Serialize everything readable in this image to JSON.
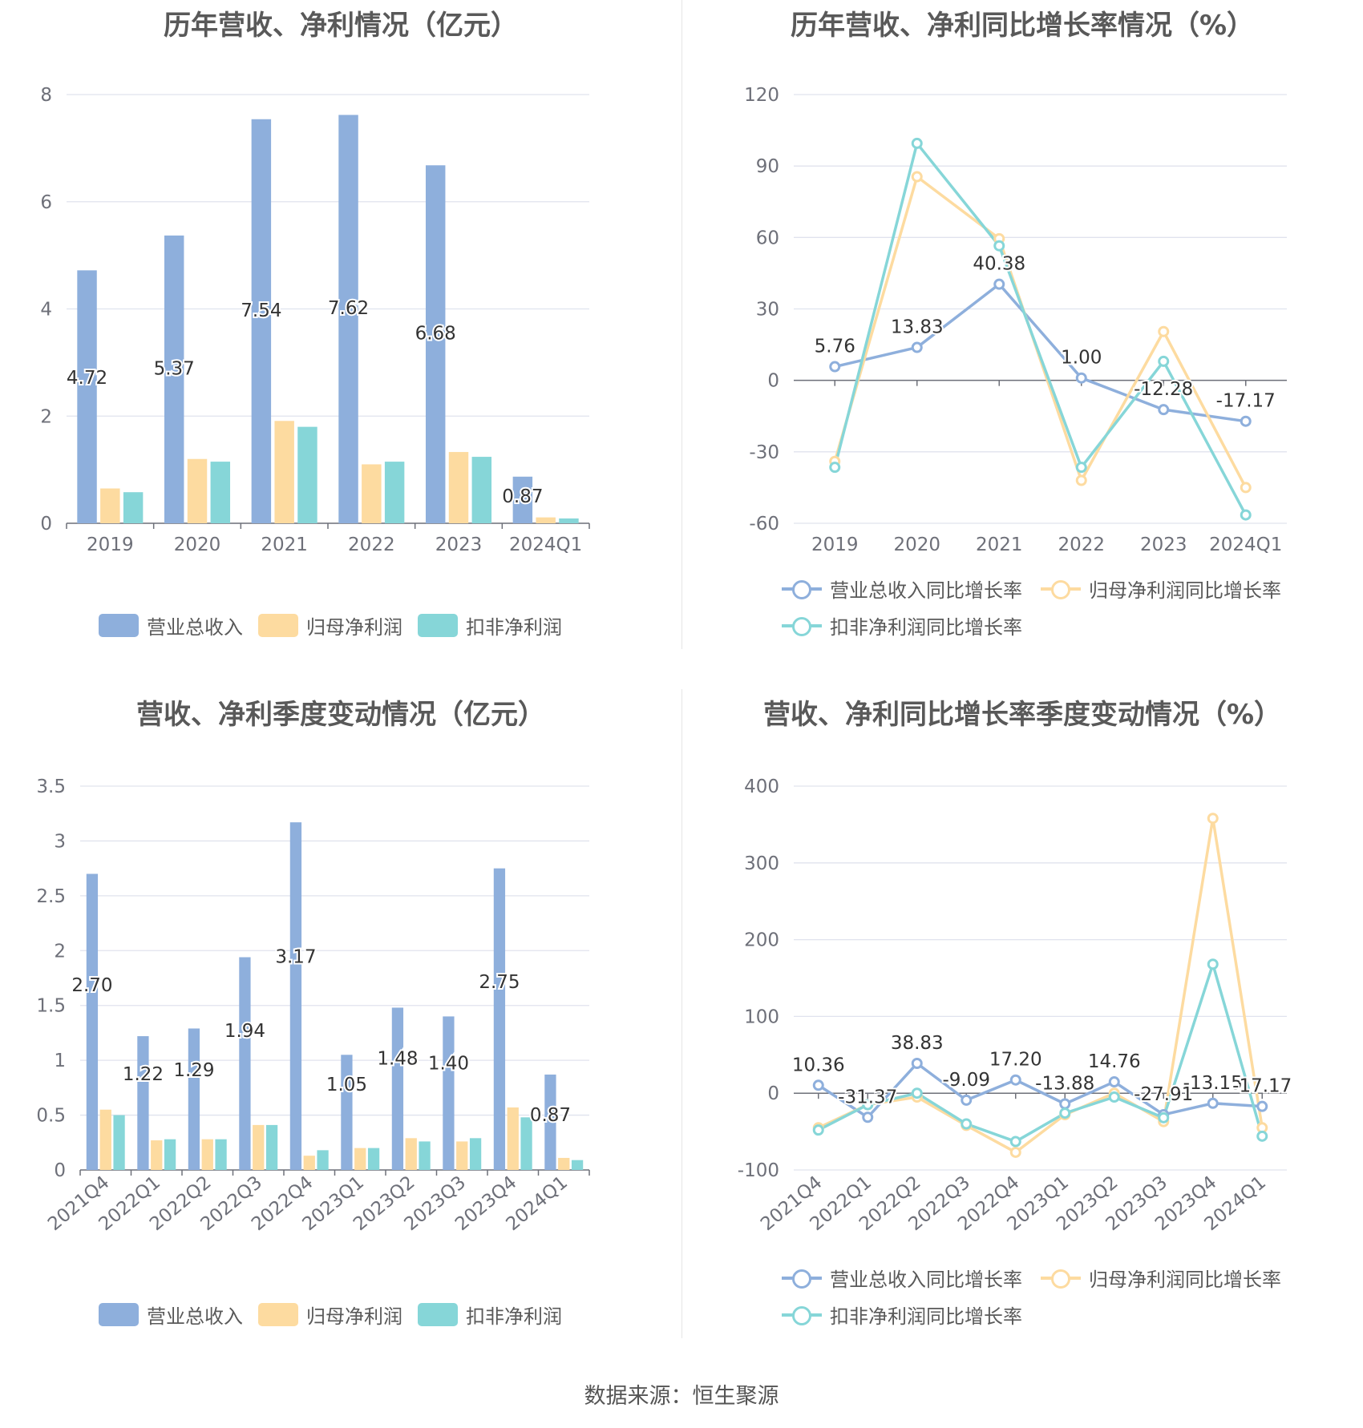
{
  "source": "数据来源：恒生聚源",
  "legend": {
    "bar": [
      "营业总收入",
      "归母净利润",
      "扣非净利润"
    ],
    "line": [
      "营业总收入同比增长率",
      "归母净利润同比增长率",
      "扣非净利润同比增长率"
    ]
  },
  "colors": {
    "revenue": "#8eafdc",
    "net_profit": "#fddba0",
    "deducted": "#86d6d8",
    "grid": "#e0e3ee",
    "axis": "#6e7079"
  },
  "chart_data": [
    {
      "type": "bar",
      "title": "历年营收、净利情况（亿元）",
      "categories": [
        "2019",
        "2020",
        "2021",
        "2022",
        "2023",
        "2024Q1"
      ],
      "ylim": [
        0,
        8
      ],
      "yticks": [
        0,
        2,
        4,
        6,
        8
      ],
      "series": [
        {
          "name": "营业总收入",
          "values": [
            4.72,
            5.37,
            7.54,
            7.62,
            6.68,
            0.87
          ]
        },
        {
          "name": "归母净利润",
          "values": [
            0.65,
            1.2,
            1.91,
            1.1,
            1.33,
            0.11
          ]
        },
        {
          "name": "扣非净利润",
          "values": [
            0.58,
            1.15,
            1.8,
            1.15,
            1.24,
            0.09
          ]
        }
      ],
      "data_labels": [
        "4.72",
        "5.37",
        "7.54",
        "7.62",
        "6.68",
        "0.87"
      ],
      "legend": "bottom"
    },
    {
      "type": "line",
      "title": "历年营收、净利同比增长率情况（%）",
      "categories": [
        "2019",
        "2020",
        "2021",
        "2022",
        "2023",
        "2024Q1"
      ],
      "ylim": [
        -60,
        120
      ],
      "yticks": [
        -60,
        -30,
        0,
        30,
        60,
        90,
        120
      ],
      "series": [
        {
          "name": "营业总收入同比增长率",
          "values": [
            5.76,
            13.83,
            40.38,
            1.0,
            -12.28,
            -17.17
          ]
        },
        {
          "name": "归母净利润同比增长率",
          "values": [
            -34,
            85.5,
            59.5,
            -42,
            20.5,
            -45
          ]
        },
        {
          "name": "扣非净利润同比增长率",
          "values": [
            -36.5,
            99.5,
            56.5,
            -36.5,
            8,
            -56.5
          ]
        }
      ],
      "data_labels": [
        "5.76",
        "13.83",
        "40.38",
        "1.00",
        "-12.28",
        "-17.17"
      ],
      "legend": "bottom"
    },
    {
      "type": "bar",
      "title": "营收、净利季度变动情况（亿元）",
      "categories": [
        "2021Q4",
        "2022Q1",
        "2022Q2",
        "2022Q3",
        "2022Q4",
        "2023Q1",
        "2023Q2",
        "2023Q3",
        "2023Q4",
        "2024Q1"
      ],
      "ylim": [
        0,
        3.5
      ],
      "yticks": [
        0,
        0.5,
        1,
        1.5,
        2,
        2.5,
        3,
        3.5
      ],
      "yticklabels": [
        "0",
        "0.5",
        "1",
        "1.5",
        "2",
        "2.5",
        "3",
        "3.5"
      ],
      "series": [
        {
          "name": "营业总收入",
          "values": [
            2.7,
            1.22,
            1.29,
            1.94,
            3.17,
            1.05,
            1.48,
            1.4,
            2.75,
            0.87
          ]
        },
        {
          "name": "归母净利润",
          "values": [
            0.55,
            0.27,
            0.28,
            0.41,
            0.13,
            0.2,
            0.29,
            0.26,
            0.57,
            0.11
          ]
        },
        {
          "name": "扣非净利润",
          "values": [
            0.5,
            0.28,
            0.28,
            0.41,
            0.18,
            0.2,
            0.26,
            0.29,
            0.48,
            0.09
          ]
        }
      ],
      "data_labels": [
        "2.70",
        "1.22",
        "1.29",
        "1.94",
        "3.17",
        "1.05",
        "1.48",
        "1.40",
        "2.75",
        "0.87"
      ],
      "legend": "bottom"
    },
    {
      "type": "line",
      "title": "营收、净利同比增长率季度变动情况（%）",
      "categories": [
        "2021Q4",
        "2022Q1",
        "2022Q2",
        "2022Q3",
        "2022Q4",
        "2023Q1",
        "2023Q2",
        "2023Q3",
        "2023Q4",
        "2024Q1"
      ],
      "ylim": [
        -100,
        400
      ],
      "yticks": [
        -100,
        0,
        100,
        200,
        300,
        400
      ],
      "series": [
        {
          "name": "营业总收入同比增长率",
          "values": [
            10.36,
            -31.37,
            38.83,
            -9.09,
            17.2,
            -13.88,
            14.76,
            -27.91,
            -13.15,
            -17.17
          ]
        },
        {
          "name": "归母净利润同比增长率",
          "values": [
            -45,
            -15,
            -5,
            -42,
            -77,
            -28,
            0,
            -37,
            358,
            -45
          ]
        },
        {
          "name": "扣非净利润同比增长率",
          "values": [
            -48,
            -15,
            0,
            -40,
            -63,
            -26,
            -5,
            -32,
            168,
            -56
          ]
        }
      ],
      "data_labels": [
        "10.36",
        "-31.37",
        "38.83",
        "-9.09",
        "17.20",
        "-13.88",
        "14.76",
        "-27.91",
        "-13.15",
        "-17.17"
      ],
      "legend": "bottom"
    }
  ]
}
